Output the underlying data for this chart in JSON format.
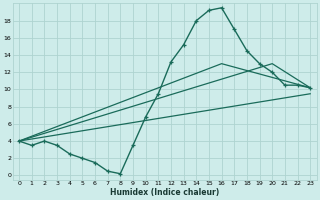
{
  "xlabel": "Humidex (Indice chaleur)",
  "bg_color": "#ceecea",
  "grid_color": "#aed4d0",
  "line_color": "#1a6b5a",
  "xlim": [
    -0.5,
    23.5
  ],
  "ylim": [
    -0.5,
    20.0
  ],
  "xticks": [
    0,
    1,
    2,
    3,
    4,
    5,
    6,
    7,
    8,
    9,
    10,
    11,
    12,
    13,
    14,
    15,
    16,
    17,
    18,
    19,
    20,
    21,
    22,
    23
  ],
  "yticks": [
    0,
    2,
    4,
    6,
    8,
    10,
    12,
    14,
    16,
    18
  ],
  "line1_x": [
    0,
    1,
    2,
    3,
    4,
    5,
    6,
    7,
    8,
    9,
    10,
    11,
    12,
    13,
    14,
    15,
    16,
    17,
    18,
    19,
    20,
    21,
    22,
    23
  ],
  "line1_y": [
    4.0,
    3.5,
    4.0,
    3.5,
    2.5,
    2.0,
    1.5,
    0.5,
    0.2,
    3.5,
    6.8,
    9.5,
    13.2,
    15.2,
    18.0,
    19.2,
    19.5,
    17.0,
    14.5,
    13.0,
    12.0,
    10.5,
    10.5,
    10.2
  ],
  "line2_x": [
    0,
    16,
    23
  ],
  "line2_y": [
    4.0,
    13.0,
    10.2
  ],
  "line3_x": [
    0,
    20,
    23
  ],
  "line3_y": [
    4.0,
    13.0,
    10.2
  ],
  "line4_x": [
    0,
    23
  ],
  "line4_y": [
    4.0,
    9.5
  ]
}
